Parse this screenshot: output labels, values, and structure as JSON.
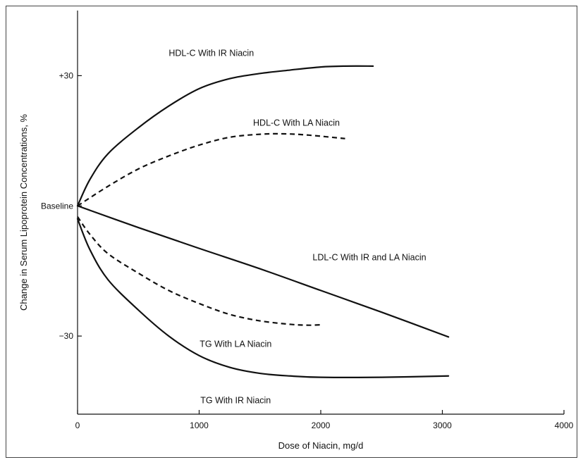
{
  "chart_data": {
    "type": "line",
    "title": "",
    "xlabel": "Dose of Niacin, mg/d",
    "ylabel": "Change in Serum Lipoprotein Concentrations, %",
    "xlim": [
      0,
      4000
    ],
    "ylim": [
      -48,
      45
    ],
    "grid": false,
    "legend": "none",
    "x_ticks": [
      {
        "value": 0,
        "label": "0"
      },
      {
        "value": 1000,
        "label": "1000"
      },
      {
        "value": 2000,
        "label": "2000"
      },
      {
        "value": 3000,
        "label": "3000"
      },
      {
        "value": 4000,
        "label": "4000"
      }
    ],
    "y_ticks": [
      {
        "value": 30,
        "label": "+30"
      },
      {
        "value": 0,
        "label": "Baseline"
      },
      {
        "value": -30,
        "label": "−30"
      }
    ],
    "series": [
      {
        "name": "HDL-C With IR Niacin",
        "style": "solid",
        "label_at": [
          1100,
          34.5
        ],
        "points": [
          [
            0,
            0
          ],
          [
            100,
            6
          ],
          [
            250,
            12
          ],
          [
            500,
            18
          ],
          [
            750,
            23
          ],
          [
            1000,
            27
          ],
          [
            1250,
            29.3
          ],
          [
            1500,
            30.5
          ],
          [
            1750,
            31.3
          ],
          [
            2000,
            32
          ],
          [
            2200,
            32.2
          ],
          [
            2430,
            32.2
          ]
        ]
      },
      {
        "name": "HDL-C With LA Niacin",
        "style": "dashed",
        "label_at": [
          1800,
          18.5
        ],
        "points": [
          [
            0,
            0
          ],
          [
            250,
            4.5
          ],
          [
            500,
            8.5
          ],
          [
            750,
            11.5
          ],
          [
            1000,
            14
          ],
          [
            1250,
            15.8
          ],
          [
            1500,
            16.5
          ],
          [
            1700,
            16.6
          ],
          [
            1900,
            16.3
          ],
          [
            2200,
            15.5
          ]
        ]
      },
      {
        "name": "LDL-C With IR and LA Niacin",
        "style": "solid",
        "label_at": [
          2400,
          -12.5
        ],
        "points": [
          [
            0,
            0
          ],
          [
            500,
            -5
          ],
          [
            1000,
            -9.8
          ],
          [
            1500,
            -14.5
          ],
          [
            2000,
            -19.5
          ],
          [
            2500,
            -24.5
          ],
          [
            3050,
            -30.2
          ]
        ]
      },
      {
        "name": "TG With LA Niacin",
        "style": "dashed",
        "label_at": [
          1300,
          -32.5
        ],
        "points": [
          [
            0,
            -2.5
          ],
          [
            100,
            -6.5
          ],
          [
            250,
            -11
          ],
          [
            500,
            -15.5
          ],
          [
            750,
            -19.5
          ],
          [
            1000,
            -22.5
          ],
          [
            1250,
            -25
          ],
          [
            1500,
            -26.5
          ],
          [
            1750,
            -27.3
          ],
          [
            1900,
            -27.5
          ],
          [
            2000,
            -27.4
          ]
        ]
      },
      {
        "name": "TG With IR Niacin",
        "style": "solid",
        "label_at": [
          1300,
          -45.5
        ],
        "points": [
          [
            0,
            -3
          ],
          [
            100,
            -10
          ],
          [
            250,
            -17
          ],
          [
            500,
            -24
          ],
          [
            750,
            -30
          ],
          [
            1000,
            -34.5
          ],
          [
            1250,
            -37.2
          ],
          [
            1500,
            -38.6
          ],
          [
            1750,
            -39.2
          ],
          [
            2000,
            -39.5
          ],
          [
            2500,
            -39.5
          ],
          [
            3050,
            -39.2
          ]
        ]
      }
    ]
  }
}
